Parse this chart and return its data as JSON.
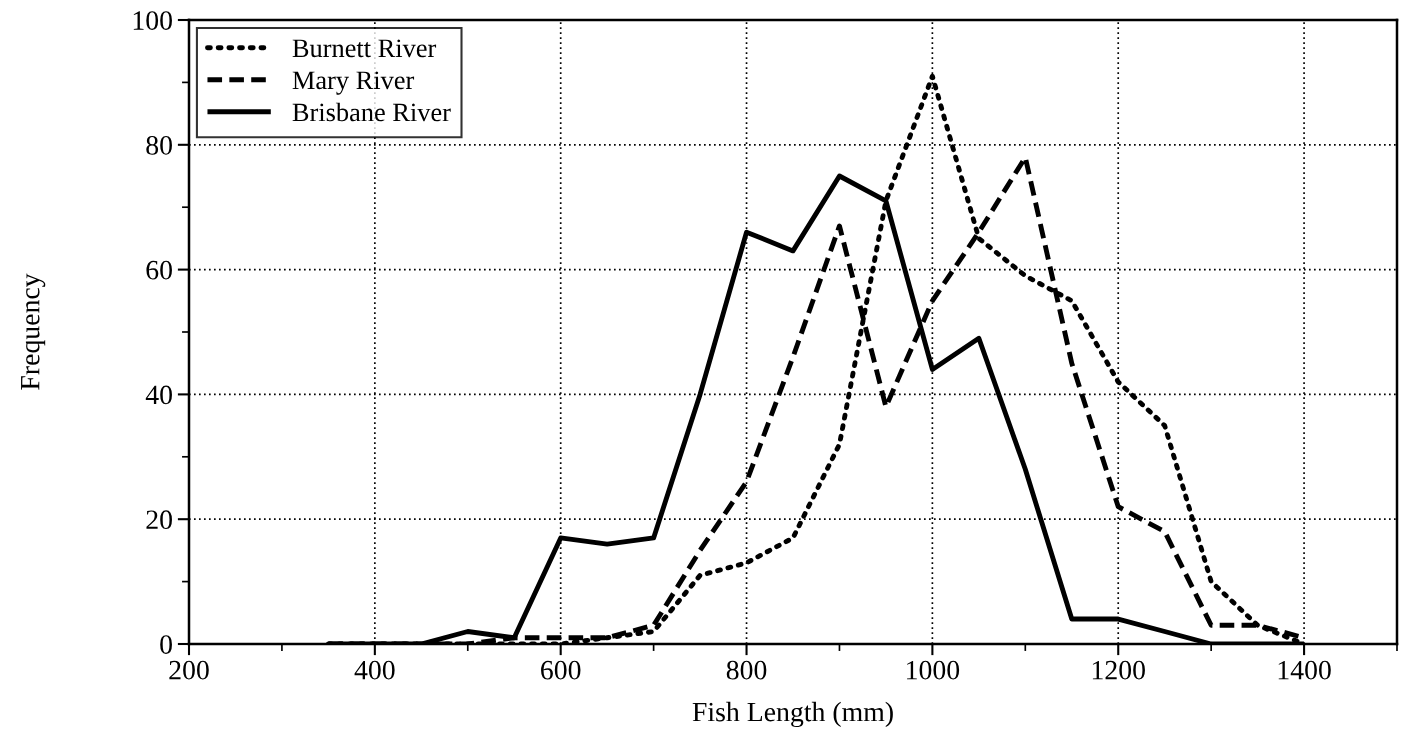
{
  "chart_data": {
    "type": "line",
    "xlabel": "Fish Length (mm)",
    "ylabel": "Frequency",
    "x": [
      350,
      400,
      450,
      500,
      550,
      600,
      650,
      700,
      750,
      800,
      850,
      900,
      950,
      1000,
      1050,
      1100,
      1150,
      1200,
      1250,
      1300,
      1350,
      1400
    ],
    "series": [
      {
        "name": "Burnett River",
        "color": "#000000",
        "line_style": "dotted",
        "values": [
          0,
          0,
          0,
          0,
          0,
          0,
          1,
          2,
          11,
          13,
          17,
          32,
          71,
          91,
          65,
          59,
          55,
          42,
          35,
          10,
          3,
          0
        ]
      },
      {
        "name": "Mary River",
        "color": "#000000",
        "line_style": "dashed",
        "values": [
          0,
          0,
          0,
          0,
          1,
          1,
          1,
          3,
          15,
          26,
          46,
          67,
          38,
          55,
          66,
          78,
          45,
          22,
          18,
          3,
          3,
          1
        ]
      },
      {
        "name": "Brisbane River",
        "color": "#000000",
        "line_style": "solid",
        "values": [
          0,
          0,
          0,
          2,
          1,
          17,
          16,
          17,
          40,
          66,
          63,
          75,
          71,
          44,
          49,
          28,
          4,
          4,
          2,
          0,
          0,
          0
        ]
      }
    ],
    "xlim": [
      200,
      1500
    ],
    "xticks": [
      200,
      400,
      600,
      800,
      1000,
      1200,
      1400
    ],
    "ylim": [
      0,
      100
    ],
    "yticks": [
      0,
      20,
      40,
      60,
      80,
      100
    ],
    "grid": true,
    "legend": "top left",
    "marker": "none"
  }
}
